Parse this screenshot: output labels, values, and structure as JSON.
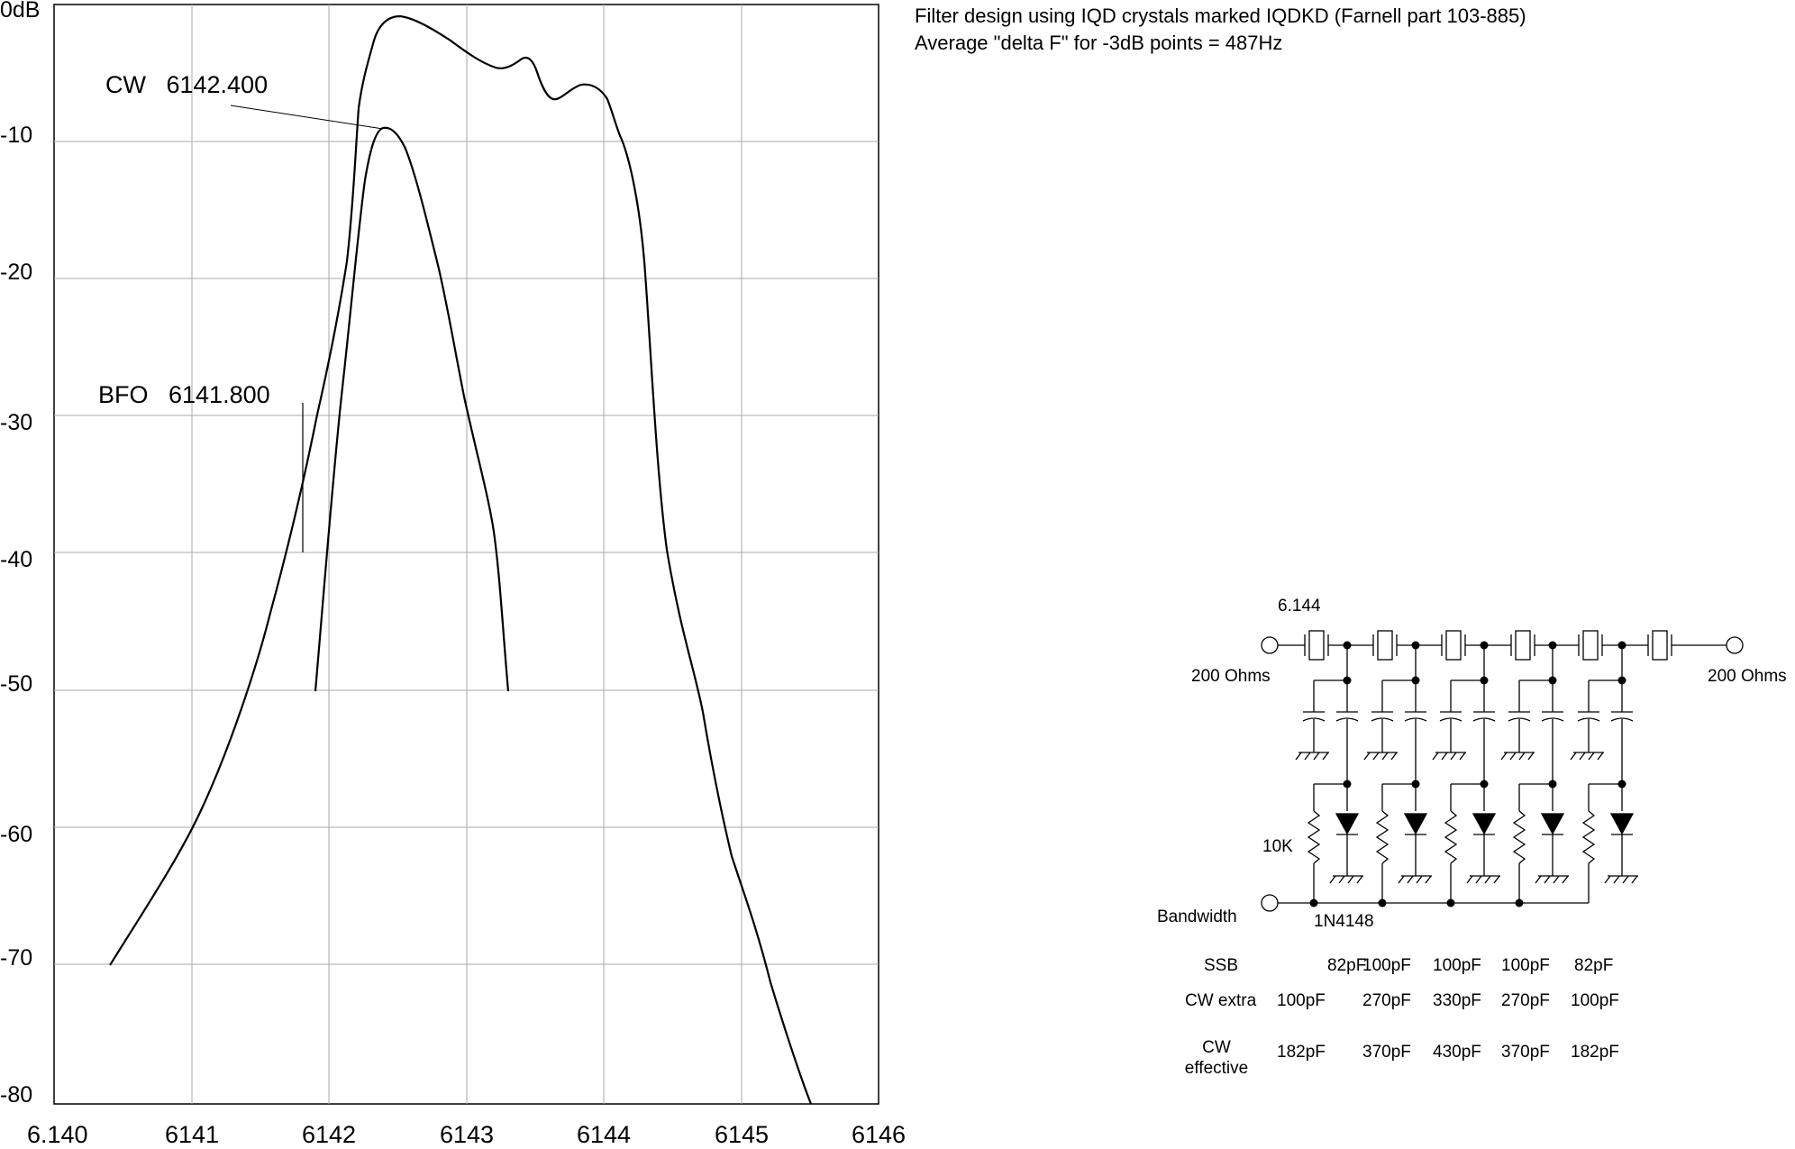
{
  "graph": {
    "y_labels": [
      "0dB",
      "-10",
      "-20",
      "-30",
      "-40",
      "-50",
      "-60",
      "-70",
      "-80"
    ],
    "x_labels": [
      "6.140",
      "6141",
      "6142",
      "6143",
      "6144",
      "6145",
      "6146"
    ],
    "cw_label": "CW   6142.400",
    "bfo_label": "BFO   6141.800"
  },
  "notes": {
    "line1": "Filter design using IQD crystals marked IQDKD  (Farnell part 103-885)",
    "line2": "Average \"delta F\" for -3dB points = 487Hz"
  },
  "schematic": {
    "crystal_freq": "6.144",
    "left_impedance": "200 Ohms",
    "right_impedance": "200 Ohms",
    "resistor": "10K",
    "diode": "1N4148",
    "control": "Bandwidth"
  },
  "table": {
    "rows": [
      {
        "label": "SSB",
        "values": [
          "82pF",
          "100pF",
          "100pF",
          "100pF",
          "82pF"
        ]
      },
      {
        "label": "CW extra",
        "values": [
          "100pF",
          "270pF",
          "330pF",
          "270pF",
          "100pF"
        ]
      },
      {
        "label_line1": "CW",
        "label_line2": "effective",
        "values": [
          "182pF",
          "370pF",
          "430pF",
          "370pF",
          "182pF"
        ]
      }
    ]
  }
}
